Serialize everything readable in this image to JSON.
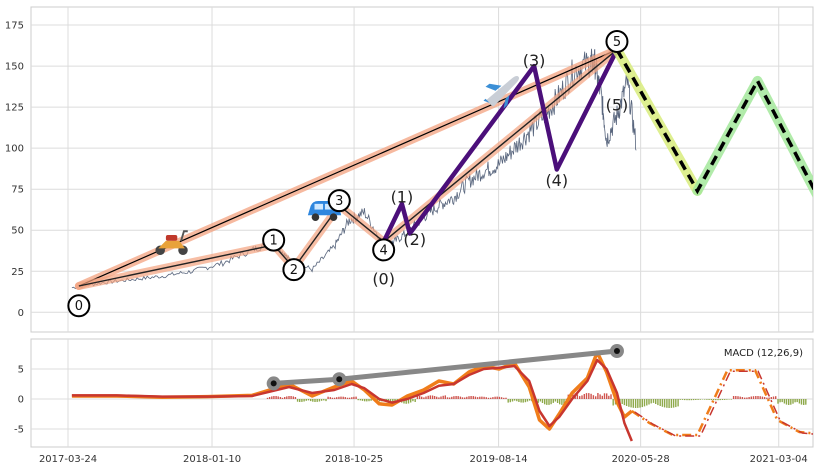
{
  "chart_data": [
    {
      "type": "line",
      "panel": "price",
      "x_range": [
        "2017-03-24",
        "2021-06-20"
      ],
      "ylim": [
        -12,
        186
      ],
      "yticks": [
        0,
        25,
        50,
        75,
        100,
        125,
        150,
        175
      ],
      "grid": true,
      "price_series": {
        "x": [
          "2017-04-01",
          "2017-06-01",
          "2017-08-01",
          "2017-10-01",
          "2017-12-01",
          "2018-02-01",
          "2018-04-01",
          "2018-05-15",
          "2018-06-15",
          "2018-08-01",
          "2018-09-15",
          "2018-10-15",
          "2018-11-15",
          "2018-12-24",
          "2019-01-15",
          "2019-02-15",
          "2019-03-15",
          "2019-04-15",
          "2019-05-15",
          "2019-06-15",
          "2019-07-15",
          "2019-08-15",
          "2019-09-15",
          "2019-10-15",
          "2019-11-15",
          "2019-12-15",
          "2020-01-15",
          "2020-02-15",
          "2020-02-25",
          "2020-03-10",
          "2020-03-20",
          "2020-04-10",
          "2020-05-01",
          "2020-05-20"
        ],
        "y": [
          15,
          18,
          20,
          22,
          25,
          30,
          38,
          43,
          32,
          26,
          40,
          56,
          61,
          41,
          43,
          50,
          58,
          65,
          70,
          80,
          86,
          90,
          100,
          110,
          120,
          132,
          148,
          152,
          152,
          130,
          105,
          120,
          140,
          100
        ]
      },
      "primary_waves": {
        "x": [
          "2017-04-15",
          "2018-05-15",
          "2018-06-25",
          "2018-09-25",
          "2018-12-24",
          "2020-04-10"
        ],
        "y": [
          16,
          41,
          27,
          65,
          43,
          160
        ]
      },
      "wave_labels": [
        {
          "text": "0",
          "x": "2017-04-15",
          "y": 4
        },
        {
          "text": "1",
          "x": "2018-05-15",
          "y": 44
        },
        {
          "text": "2",
          "x": "2018-06-25",
          "y": 26
        },
        {
          "text": "3",
          "x": "2018-09-25",
          "y": 68
        },
        {
          "text": "4",
          "x": "2018-12-24",
          "y": 38
        },
        {
          "text": "5",
          "x": "2020-04-10",
          "y": 165
        }
      ],
      "sub_waves": {
        "x": [
          "2018-12-24",
          "2019-01-30",
          "2019-02-15",
          "2019-10-25",
          "2019-12-10",
          "2020-04-10"
        ],
        "y": [
          43,
          66,
          48,
          150,
          87,
          160
        ]
      },
      "sub_wave_labels": [
        {
          "text": "(0)",
          "x": "2018-12-24",
          "y": 20
        },
        {
          "text": "(1)",
          "x": "2019-01-30",
          "y": 70
        },
        {
          "text": "(2)",
          "x": "2019-02-25",
          "y": 44
        },
        {
          "text": "(3)",
          "x": "2019-10-25",
          "y": 153
        },
        {
          "text": "(4)",
          "x": "2019-12-10",
          "y": 80
        },
        {
          "text": "(5)",
          "x": "2020-04-10",
          "y": 126
        }
      ],
      "forecast": {
        "x": [
          "2020-04-10",
          "2020-09-20",
          "2021-01-20",
          "2021-06-15"
        ],
        "y": [
          160,
          74,
          141,
          57
        ]
      },
      "trend_band": {
        "x": [
          "2017-04-15",
          "2020-04-10"
        ],
        "y": [
          16,
          160
        ]
      },
      "colors": {
        "price": "#3b4a66",
        "band": "#f3a27f",
        "trend": "#000000",
        "primary": "#f3a27f",
        "sub": "#4b0f7a",
        "forecast_glow1": "#d8ec7d",
        "forecast_glow2": "#a3e89b",
        "forecast_line": "#000000"
      },
      "icons": [
        {
          "name": "scooter-icon",
          "x": "2017-10-20",
          "y": 43
        },
        {
          "name": "car-icon",
          "x": "2018-08-25",
          "y": 62
        },
        {
          "name": "airplane-icon",
          "x": "2019-08-20",
          "y": 135
        }
      ]
    },
    {
      "type": "line",
      "panel": "macd",
      "legend": "MACD (12,26,9)",
      "legend_position": "top-right",
      "ylim": [
        -8,
        10
      ],
      "yticks": [
        -5,
        0,
        5
      ],
      "xticks": [
        "2017-03-24",
        "2018-01-10",
        "2018-10-25",
        "2019-08-14",
        "2020-05-28",
        "2021-03-04"
      ],
      "grid": true,
      "macd_line": {
        "x": [
          "2017-04-01",
          "2017-07-01",
          "2017-10-01",
          "2018-01-01",
          "2018-04-01",
          "2018-06-15",
          "2018-08-01",
          "2018-09-15",
          "2018-10-20",
          "2018-11-15",
          "2018-12-15",
          "2019-01-10",
          "2019-02-10",
          "2019-03-15",
          "2019-04-15",
          "2019-05-15",
          "2019-06-15",
          "2019-07-15",
          "2019-08-15",
          "2019-09-15",
          "2019-10-15",
          "2019-11-05",
          "2019-11-25",
          "2019-12-15",
          "2020-01-10",
          "2020-02-10",
          "2020-03-01",
          "2020-03-20",
          "2020-04-10",
          "2020-04-25",
          "2020-05-10"
        ],
        "y": [
          0.5,
          0.5,
          0.3,
          0.4,
          0.6,
          2.5,
          0.5,
          2.0,
          3.0,
          1.5,
          -0.8,
          -1.0,
          0.5,
          1.5,
          3.0,
          2.5,
          4.5,
          5.5,
          5.0,
          6.0,
          2.0,
          -3.5,
          -5.0,
          -2.5,
          1.0,
          3.5,
          7.8,
          4.5,
          -0.5,
          -3.0,
          -2.0
        ]
      },
      "signal_line": {
        "x": [
          "2017-04-01",
          "2017-07-01",
          "2017-10-01",
          "2018-01-01",
          "2018-04-01",
          "2018-06-15",
          "2018-08-01",
          "2018-09-15",
          "2018-10-20",
          "2018-11-15",
          "2018-12-15",
          "2019-01-10",
          "2019-02-10",
          "2019-03-15",
          "2019-04-15",
          "2019-05-15",
          "2019-06-15",
          "2019-07-15",
          "2019-08-15",
          "2019-09-15",
          "2019-10-15",
          "2019-11-05",
          "2019-11-25",
          "2019-12-15",
          "2020-01-10",
          "2020-02-10",
          "2020-03-01",
          "2020-03-20",
          "2020-04-10",
          "2020-04-25",
          "2020-05-10"
        ],
        "y": [
          0.6,
          0.6,
          0.4,
          0.4,
          0.5,
          2.0,
          1.0,
          1.5,
          2.5,
          1.8,
          0.0,
          -0.6,
          0.0,
          1.0,
          2.2,
          2.5,
          4.0,
          5.0,
          5.2,
          5.5,
          3.0,
          -2.0,
          -4.5,
          -3.0,
          0.0,
          3.0,
          6.5,
          5.0,
          1.0,
          -4.0,
          -7.0
        ]
      },
      "macd_forecast": {
        "x": [
          "2020-05-10",
          "2020-06-15",
          "2020-08-01",
          "2020-09-20",
          "2020-11-20",
          "2021-01-15",
          "2021-03-01",
          "2021-04-15",
          "2021-06-15"
        ],
        "y": [
          -2.0,
          -4.0,
          -6.0,
          -6.0,
          4.8,
          4.8,
          -3.5,
          -5.5,
          -6.0
        ]
      },
      "histogram": {
        "x": [
          "2018-05-01",
          "2018-07-01",
          "2018-09-01",
          "2018-11-01",
          "2019-01-01",
          "2019-03-01",
          "2019-05-01",
          "2019-07-01",
          "2019-09-01",
          "2019-11-01",
          "2020-01-01",
          "2020-03-01",
          "2020-04-01",
          "2020-08-15",
          "2020-12-01",
          "2021-03-01"
        ],
        "y": [
          0.5,
          -0.5,
          0.4,
          -0.4,
          -0.8,
          0.6,
          0.5,
          0.4,
          -0.6,
          -1.0,
          1.0,
          1.0,
          -1.5,
          -0.2,
          0.5,
          -1.0
        ]
      },
      "divergence": {
        "x": [
          "2018-05-15",
          "2018-09-25",
          "2020-04-10"
        ],
        "y": [
          2.6,
          3.3,
          8.0
        ]
      },
      "colors": {
        "macd": "#f07d1a",
        "signal": "#c8362f",
        "hist_pos": "#c8362f",
        "hist_neg": "#7a9a2a",
        "divergence": "#888888"
      }
    }
  ]
}
